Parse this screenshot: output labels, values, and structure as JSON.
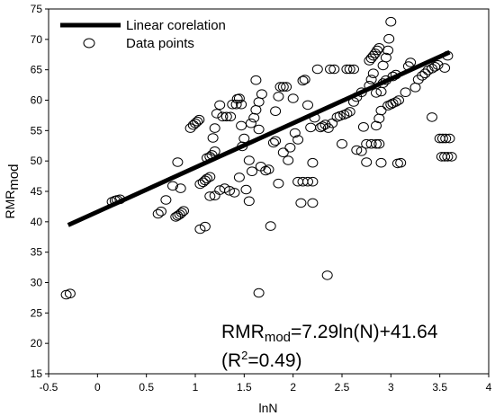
{
  "chart_data": {
    "type": "scatter",
    "xlabel": "lnN",
    "ylabel": {
      "main": "RMR",
      "sub": "mod"
    },
    "xlim": [
      -0.5,
      4
    ],
    "ylim": [
      15,
      75
    ],
    "xticks": [
      "-0.5",
      "0",
      "0.5",
      "1",
      "1.5",
      "2",
      "2.5",
      "3",
      "3.5",
      "4"
    ],
    "yticks": [
      "15",
      "20",
      "25",
      "30",
      "35",
      "40",
      "45",
      "50",
      "55",
      "60",
      "65",
      "70",
      "75"
    ],
    "legend": {
      "position": "top-left",
      "line_label": "Linear corelation",
      "points_label": "Data points"
    },
    "equation": {
      "lhs_main": "RMR",
      "lhs_sub": "mod",
      "rhs": "=7.29ln(N)+41.64",
      "r2_open": "(R",
      "r2_sup": "2",
      "r2_close": "=0.49)"
    },
    "fit_line": {
      "slope": 7.29,
      "intercept": 41.64,
      "x_range": [
        -0.3,
        3.6
      ]
    },
    "points": [
      [
        -0.32,
        28.0
      ],
      [
        -0.28,
        28.2
      ],
      [
        0.15,
        43.3
      ],
      [
        0.18,
        43.5
      ],
      [
        0.2,
        43.6
      ],
      [
        0.23,
        43.7
      ],
      [
        0.62,
        41.3
      ],
      [
        0.65,
        41.7
      ],
      [
        0.7,
        43.6
      ],
      [
        0.77,
        45.9
      ],
      [
        0.8,
        40.8
      ],
      [
        0.82,
        41.0
      ],
      [
        0.84,
        41.2
      ],
      [
        0.86,
        41.5
      ],
      [
        0.88,
        41.8
      ],
      [
        0.82,
        49.8
      ],
      [
        0.85,
        45.5
      ],
      [
        0.95,
        55.4
      ],
      [
        0.98,
        55.9
      ],
      [
        1.0,
        56.2
      ],
      [
        1.02,
        56.5
      ],
      [
        1.04,
        56.8
      ],
      [
        1.05,
        38.8
      ],
      [
        1.1,
        39.2
      ],
      [
        1.05,
        46.2
      ],
      [
        1.08,
        46.5
      ],
      [
        1.1,
        46.8
      ],
      [
        1.12,
        47.1
      ],
      [
        1.15,
        47.4
      ],
      [
        1.12,
        50.5
      ],
      [
        1.15,
        50.7
      ],
      [
        1.17,
        51.0
      ],
      [
        1.2,
        51.6
      ],
      [
        1.15,
        44.2
      ],
      [
        1.2,
        44.3
      ],
      [
        1.25,
        45.2
      ],
      [
        1.3,
        45.5
      ],
      [
        1.35,
        45.1
      ],
      [
        1.4,
        44.8
      ],
      [
        1.18,
        53.8
      ],
      [
        1.2,
        55.4
      ],
      [
        1.22,
        57.8
      ],
      [
        1.25,
        59.2
      ],
      [
        1.28,
        57.3
      ],
      [
        1.32,
        57.3
      ],
      [
        1.36,
        57.3
      ],
      [
        1.38,
        59.3
      ],
      [
        1.42,
        59.3
      ],
      [
        1.47,
        59.3
      ],
      [
        1.43,
        60.2
      ],
      [
        1.45,
        60.3
      ],
      [
        1.47,
        55.8
      ],
      [
        1.5,
        53.7
      ],
      [
        1.48,
        52.4
      ],
      [
        1.45,
        47.3
      ],
      [
        1.52,
        45.3
      ],
      [
        1.55,
        43.4
      ],
      [
        1.55,
        50.1
      ],
      [
        1.58,
        48.3
      ],
      [
        1.57,
        56.2
      ],
      [
        1.6,
        57.1
      ],
      [
        1.62,
        58.4
      ],
      [
        1.65,
        59.7
      ],
      [
        1.68,
        61.0
      ],
      [
        1.62,
        63.3
      ],
      [
        1.65,
        55.2
      ],
      [
        1.67,
        49.1
      ],
      [
        1.65,
        28.3
      ],
      [
        1.72,
        48.4
      ],
      [
        1.75,
        48.6
      ],
      [
        1.77,
        39.3
      ],
      [
        1.8,
        53.0
      ],
      [
        1.82,
        53.3
      ],
      [
        1.82,
        58.2
      ],
      [
        1.85,
        60.6
      ],
      [
        1.87,
        62.2
      ],
      [
        1.9,
        62.2
      ],
      [
        1.93,
        62.2
      ],
      [
        1.85,
        46.3
      ],
      [
        1.9,
        51.4
      ],
      [
        1.95,
        50.1
      ],
      [
        1.97,
        52.2
      ],
      [
        2.0,
        60.3
      ],
      [
        2.02,
        54.6
      ],
      [
        2.05,
        53.5
      ],
      [
        2.05,
        46.6
      ],
      [
        2.1,
        46.6
      ],
      [
        2.15,
        46.6
      ],
      [
        2.2,
        46.6
      ],
      [
        2.08,
        43.1
      ],
      [
        2.2,
        43.1
      ],
      [
        2.1,
        63.2
      ],
      [
        2.12,
        63.4
      ],
      [
        2.15,
        59.2
      ],
      [
        2.18,
        55.5
      ],
      [
        2.2,
        49.7
      ],
      [
        2.22,
        57.1
      ],
      [
        2.25,
        65.1
      ],
      [
        2.28,
        55.5
      ],
      [
        2.3,
        55.7
      ],
      [
        2.33,
        56.0
      ],
      [
        2.36,
        55.4
      ],
      [
        2.4,
        56.2
      ],
      [
        2.35,
        31.2
      ],
      [
        2.38,
        65.1
      ],
      [
        2.42,
        65.1
      ],
      [
        2.45,
        57.2
      ],
      [
        2.48,
        57.4
      ],
      [
        2.52,
        57.6
      ],
      [
        2.55,
        57.8
      ],
      [
        2.58,
        58.1
      ],
      [
        2.5,
        52.8
      ],
      [
        2.55,
        65.1
      ],
      [
        2.58,
        65.1
      ],
      [
        2.62,
        65.1
      ],
      [
        2.62,
        59.7
      ],
      [
        2.65,
        60.5
      ],
      [
        2.7,
        61.3
      ],
      [
        2.72,
        55.6
      ],
      [
        2.65,
        51.8
      ],
      [
        2.7,
        51.6
      ],
      [
        2.75,
        49.8
      ],
      [
        2.75,
        52.8
      ],
      [
        2.8,
        52.8
      ],
      [
        2.85,
        52.8
      ],
      [
        2.88,
        52.8
      ],
      [
        2.78,
        66.5
      ],
      [
        2.8,
        66.9
      ],
      [
        2.82,
        67.3
      ],
      [
        2.84,
        67.7
      ],
      [
        2.86,
        68.2
      ],
      [
        2.88,
        68.6
      ],
      [
        2.78,
        62.4
      ],
      [
        2.8,
        63.4
      ],
      [
        2.82,
        64.4
      ],
      [
        2.85,
        55.8
      ],
      [
        2.88,
        57.0
      ],
      [
        2.9,
        58.3
      ],
      [
        2.85,
        61.2
      ],
      [
        2.9,
        61.4
      ],
      [
        2.92,
        62.8
      ],
      [
        2.95,
        63.3
      ],
      [
        2.9,
        49.7
      ],
      [
        2.92,
        65.7
      ],
      [
        2.95,
        67.0
      ],
      [
        2.97,
        68.2
      ],
      [
        2.98,
        70.1
      ],
      [
        3.0,
        72.9
      ],
      [
        2.97,
        59.1
      ],
      [
        3.0,
        59.3
      ],
      [
        3.02,
        59.5
      ],
      [
        3.05,
        59.7
      ],
      [
        3.08,
        60.0
      ],
      [
        3.02,
        63.9
      ],
      [
        3.05,
        64.2
      ],
      [
        3.07,
        49.6
      ],
      [
        3.1,
        49.7
      ],
      [
        3.15,
        61.3
      ],
      [
        3.18,
        65.6
      ],
      [
        3.2,
        66.2
      ],
      [
        3.25,
        62.1
      ],
      [
        3.28,
        63.4
      ],
      [
        3.32,
        64.0
      ],
      [
        3.35,
        64.4
      ],
      [
        3.38,
        64.9
      ],
      [
        3.42,
        65.2
      ],
      [
        3.45,
        65.5
      ],
      [
        3.48,
        65.8
      ],
      [
        3.42,
        57.2
      ],
      [
        3.5,
        53.7
      ],
      [
        3.53,
        53.7
      ],
      [
        3.56,
        53.7
      ],
      [
        3.6,
        53.7
      ],
      [
        3.52,
        50.7
      ],
      [
        3.55,
        50.7
      ],
      [
        3.58,
        50.7
      ],
      [
        3.62,
        50.7
      ],
      [
        3.55,
        65.3
      ],
      [
        3.58,
        67.3
      ]
    ]
  }
}
